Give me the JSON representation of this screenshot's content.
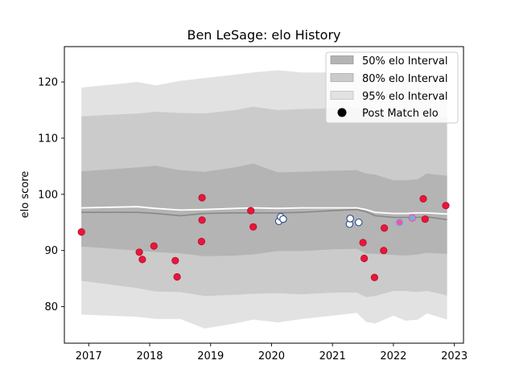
{
  "chart_data": {
    "type": "scatter",
    "title": "Ben LeSage: elo History",
    "xlabel": "",
    "ylabel": "elo score",
    "xlim": [
      2016.6,
      2023.15
    ],
    "ylim": [
      73.5,
      126.3
    ],
    "x_ticks": [
      2017,
      2018,
      2019,
      2020,
      2021,
      2022,
      2023
    ],
    "x_tick_labels": [
      "2017",
      "2018",
      "2019",
      "2020",
      "2021",
      "2022",
      "2023"
    ],
    "y_ticks": [
      80,
      90,
      100,
      110,
      120
    ],
    "y_tick_labels": [
      "80",
      "90",
      "100",
      "110",
      "120"
    ],
    "grid": false,
    "legend_position": "top-right",
    "legend": [
      {
        "label": "50% elo Interval",
        "kind": "band",
        "color": "#b4b4b4"
      },
      {
        "label": "80% elo Interval",
        "kind": "band",
        "color": "#cbcbcb"
      },
      {
        "label": "95% elo Interval",
        "kind": "band",
        "color": "#e2e2e2"
      },
      {
        "label": "Post Match elo",
        "kind": "marker",
        "color": "#000000"
      }
    ],
    "bands": {
      "x": [
        2016.88,
        2017.8,
        2018.1,
        2018.5,
        2018.9,
        2019.4,
        2019.7,
        2020.1,
        2020.5,
        2021.0,
        2021.4,
        2021.55,
        2021.7,
        2022.0,
        2022.2,
        2022.4,
        2022.55,
        2022.88
      ],
      "p95_upper": [
        119.0,
        120.0,
        119.4,
        120.2,
        120.7,
        121.3,
        121.7,
        122.1,
        121.7,
        121.7,
        121.5,
        121.0,
        120.6,
        120.4,
        120.5,
        120.6,
        120.7,
        120.7
      ],
      "p80_upper": [
        113.9,
        114.4,
        114.7,
        114.5,
        114.4,
        115.0,
        115.6,
        115.0,
        115.2,
        115.3,
        115.4,
        114.5,
        114.2,
        113.8,
        113.8,
        113.8,
        113.8,
        113.8
      ],
      "p50_upper": [
        104.1,
        104.8,
        105.1,
        104.3,
        104.0,
        104.8,
        105.5,
        103.9,
        104.0,
        104.2,
        104.3,
        103.7,
        103.5,
        102.5,
        102.5,
        102.7,
        103.7,
        103.3
      ],
      "p50_lower": [
        90.7,
        90.0,
        89.7,
        89.5,
        89.0,
        89.1,
        89.3,
        89.9,
        89.9,
        90.2,
        90.3,
        89.5,
        89.4,
        89.2,
        89.1,
        89.3,
        89.6,
        89.4
      ],
      "p80_lower": [
        84.6,
        83.3,
        82.7,
        82.6,
        81.9,
        82.1,
        82.3,
        82.4,
        82.2,
        82.5,
        82.5,
        81.7,
        81.9,
        82.8,
        82.8,
        82.6,
        82.8,
        82.0
      ],
      "p95_lower": [
        78.6,
        78.2,
        77.8,
        77.8,
        76.1,
        77.0,
        77.7,
        77.2,
        77.8,
        78.4,
        78.9,
        77.3,
        77.0,
        78.4,
        77.5,
        77.7,
        78.8,
        77.7
      ],
      "median": [
        96.8,
        96.8,
        96.6,
        96.2,
        96.6,
        96.7,
        96.7,
        96.7,
        96.8,
        97.1,
        97.3,
        96.9,
        96.2,
        95.9,
        95.9,
        95.9,
        96.0,
        95.5
      ],
      "mean": [
        97.6,
        97.8,
        97.5,
        97.2,
        97.3,
        97.5,
        97.6,
        97.5,
        97.6,
        97.6,
        97.6,
        97.3,
        96.8,
        96.6,
        96.6,
        96.7,
        96.7,
        96.5
      ]
    },
    "series": [
      {
        "name": "Post Match elo",
        "points": [
          {
            "x": 2016.88,
            "y": 93.3,
            "marker": "win"
          },
          {
            "x": 2017.83,
            "y": 89.7,
            "marker": "win"
          },
          {
            "x": 2017.88,
            "y": 88.4,
            "marker": "win"
          },
          {
            "x": 2018.07,
            "y": 90.8,
            "marker": "win"
          },
          {
            "x": 2018.42,
            "y": 88.2,
            "marker": "win"
          },
          {
            "x": 2018.45,
            "y": 85.3,
            "marker": "win"
          },
          {
            "x": 2018.86,
            "y": 99.4,
            "marker": "win"
          },
          {
            "x": 2018.86,
            "y": 95.4,
            "marker": "win"
          },
          {
            "x": 2018.85,
            "y": 91.6,
            "marker": "win"
          },
          {
            "x": 2019.66,
            "y": 97.1,
            "marker": "win"
          },
          {
            "x": 2019.7,
            "y": 94.2,
            "marker": "win"
          },
          {
            "x": 2020.12,
            "y": 95.2,
            "marker": "open"
          },
          {
            "x": 2020.15,
            "y": 96.0,
            "marker": "open"
          },
          {
            "x": 2020.19,
            "y": 95.6,
            "marker": "open"
          },
          {
            "x": 2021.28,
            "y": 94.7,
            "marker": "open"
          },
          {
            "x": 2021.29,
            "y": 95.7,
            "marker": "open"
          },
          {
            "x": 2021.43,
            "y": 95.0,
            "marker": "open"
          },
          {
            "x": 2021.5,
            "y": 91.4,
            "marker": "win"
          },
          {
            "x": 2021.52,
            "y": 88.6,
            "marker": "win"
          },
          {
            "x": 2021.69,
            "y": 85.2,
            "marker": "win"
          },
          {
            "x": 2021.85,
            "y": 94.0,
            "marker": "win"
          },
          {
            "x": 2021.84,
            "y": 90.0,
            "marker": "win"
          },
          {
            "x": 2022.1,
            "y": 95.0,
            "marker": "pink"
          },
          {
            "x": 2022.31,
            "y": 95.8,
            "marker": "blue"
          },
          {
            "x": 2022.49,
            "y": 99.2,
            "marker": "win"
          },
          {
            "x": 2022.52,
            "y": 95.6,
            "marker": "win"
          },
          {
            "x": 2022.86,
            "y": 98.0,
            "marker": "win"
          }
        ]
      }
    ],
    "colors": {
      "p50": "#b4b4b4",
      "p80": "#cbcbcb",
      "p95": "#e2e2e2",
      "median": "#888888",
      "mean": "#ffffff",
      "win_fill": "#e8173a",
      "open_edge": "#2b4a8b",
      "pink_fill": "#e65aa0",
      "blue_fill": "#7fa8e0"
    }
  }
}
